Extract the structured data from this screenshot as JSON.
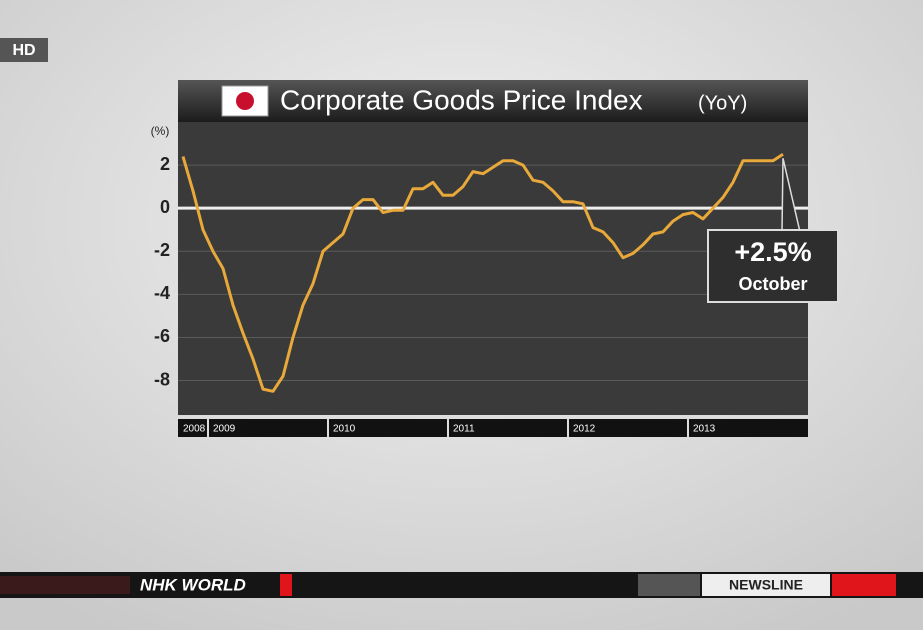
{
  "broadcast": {
    "badge": "HD",
    "channel": "NHK WORLD",
    "program": "NEWSLINE"
  },
  "chart_data": {
    "type": "line",
    "title": "Corporate Goods Price Index",
    "subtitle": "(YoY)",
    "y_label": "(%)",
    "categories": [
      "2008",
      null,
      null,
      "2009",
      null,
      null,
      null,
      null,
      null,
      null,
      null,
      null,
      null,
      null,
      null,
      "2010",
      null,
      null,
      null,
      null,
      null,
      null,
      null,
      null,
      null,
      null,
      null,
      "2011",
      null,
      null,
      null,
      null,
      null,
      null,
      null,
      null,
      null,
      null,
      null,
      "2012",
      null,
      null,
      null,
      null,
      null,
      null,
      null,
      null,
      null,
      null,
      null,
      "2013",
      null,
      null,
      null,
      null,
      null,
      null,
      null,
      null,
      null,
      null,
      null
    ],
    "series": [
      {
        "name": "Corporate Goods Price Index",
        "color": "#e8a93a",
        "values": [
          2.4,
          0.8,
          -1.0,
          -2.0,
          -2.8,
          -4.5,
          -5.8,
          -7.0,
          -8.4,
          -8.5,
          -7.8,
          -6.0,
          -4.5,
          -3.5,
          -2.0,
          -1.6,
          -1.2,
          0.0,
          0.4,
          0.4,
          -0.2,
          -0.1,
          -0.1,
          0.9,
          0.9,
          1.2,
          0.6,
          0.6,
          1.0,
          1.7,
          1.6,
          1.9,
          2.2,
          2.2,
          2.0,
          1.3,
          1.2,
          0.8,
          0.3,
          0.3,
          0.2,
          -0.9,
          -1.1,
          -1.6,
          -2.3,
          -2.1,
          -1.7,
          -1.2,
          -1.1,
          -0.6,
          -0.3,
          -0.2,
          -0.5,
          0.0,
          0.5,
          1.2,
          2.2,
          2.2,
          2.2,
          2.2,
          2.5,
          null,
          null
        ]
      }
    ],
    "annotation": {
      "label": "+2.5%",
      "month": "October",
      "point": 60
    },
    "ylim": [
      -9.6,
      4
    ],
    "yticks": [
      2,
      0,
      -2,
      -4,
      -6,
      -8
    ],
    "grid": true
  }
}
